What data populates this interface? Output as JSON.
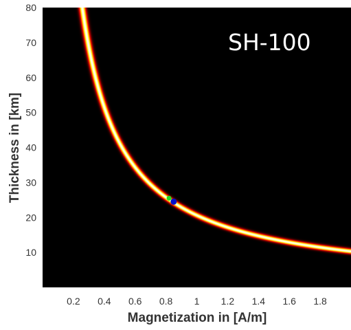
{
  "chart_data": {
    "type": "heatmap",
    "title": "",
    "annotation": "SH-100",
    "xlabel": "Magnetization in [A/m]",
    "ylabel": "Thickness in [km]",
    "xlim": [
      0,
      2
    ],
    "ylim": [
      0,
      80
    ],
    "x_ticks": [
      0.2,
      0.4,
      0.6,
      0.8,
      1,
      1.2,
      1.4,
      1.6,
      1.8
    ],
    "x_tick_labels": [
      "0.2",
      "0.4",
      "0.6",
      "0.8",
      "1",
      "1.2",
      "1.4",
      "1.6",
      "1.8"
    ],
    "y_ticks": [
      10,
      20,
      30,
      40,
      50,
      60,
      70,
      80
    ],
    "y_tick_labels": [
      "10",
      "20",
      "30",
      "40",
      "50",
      "60",
      "70",
      "80"
    ],
    "grid": false,
    "colormap": "hot",
    "background_color": "#000000",
    "ridge_curve": {
      "relation": "thickness × magnetization = constant",
      "product_constant": 20.6
    },
    "points": [
      {
        "x": 0.82,
        "y": 25.5,
        "color": "#22dd22"
      },
      {
        "x": 0.85,
        "y": 24.5,
        "color": "#0010cc"
      }
    ]
  }
}
